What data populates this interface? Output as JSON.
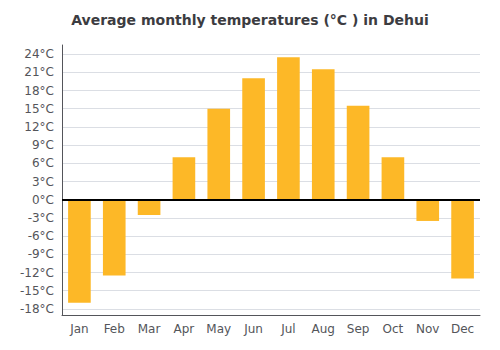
{
  "chart_data": {
    "type": "bar",
    "title": "Average monthly temperatures (°C ) in Dehui",
    "categories": [
      "Jan",
      "Feb",
      "Mar",
      "Apr",
      "May",
      "Jun",
      "Jul",
      "Aug",
      "Sep",
      "Oct",
      "Nov",
      "Dec"
    ],
    "values": [
      -17,
      -12.5,
      -2.5,
      7,
      15,
      20,
      23.5,
      21.5,
      15.5,
      7,
      -3.5,
      -13
    ],
    "color": "#FDB827",
    "ylim": [
      -19,
      25.5
    ],
    "yticks": [
      {
        "value": -18,
        "label": "-18°C"
      },
      {
        "value": -15,
        "label": "-15°C"
      },
      {
        "value": -12,
        "label": "-12°C"
      },
      {
        "value": -9,
        "label": "-9°C"
      },
      {
        "value": -6,
        "label": "-6°C"
      },
      {
        "value": -3,
        "label": "-3°C"
      },
      {
        "value": 0,
        "label": "0°C"
      },
      {
        "value": 3,
        "label": "3°C"
      },
      {
        "value": 6,
        "label": "6°C"
      },
      {
        "value": 9,
        "label": "9°C"
      },
      {
        "value": 12,
        "label": "12°C"
      },
      {
        "value": 15,
        "label": "15°C"
      },
      {
        "value": 18,
        "label": "18°C"
      },
      {
        "value": 21,
        "label": "21°C"
      },
      {
        "value": 24,
        "label": "24°C"
      }
    ],
    "grid": true
  }
}
